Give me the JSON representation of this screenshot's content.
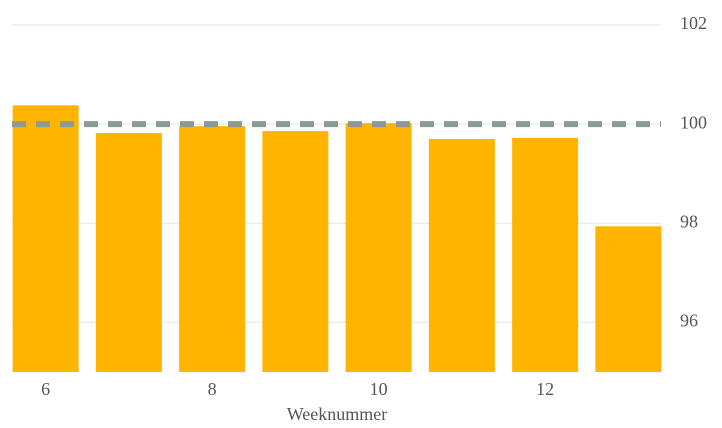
{
  "chart_data": {
    "type": "bar",
    "x_label": "Weeknummer",
    "categories": [
      6,
      null,
      8,
      null,
      10,
      null,
      12,
      null
    ],
    "values": [
      100.38,
      99.82,
      99.96,
      99.86,
      100.02,
      99.7,
      99.72,
      97.94
    ],
    "color": "#ffb400",
    "ylim": [
      95,
      102
    ],
    "yticks": [
      96,
      98,
      100,
      102
    ],
    "y_axis_side": "right",
    "grid": true,
    "reference_line": 100,
    "reference_color": "#8a9a94"
  }
}
